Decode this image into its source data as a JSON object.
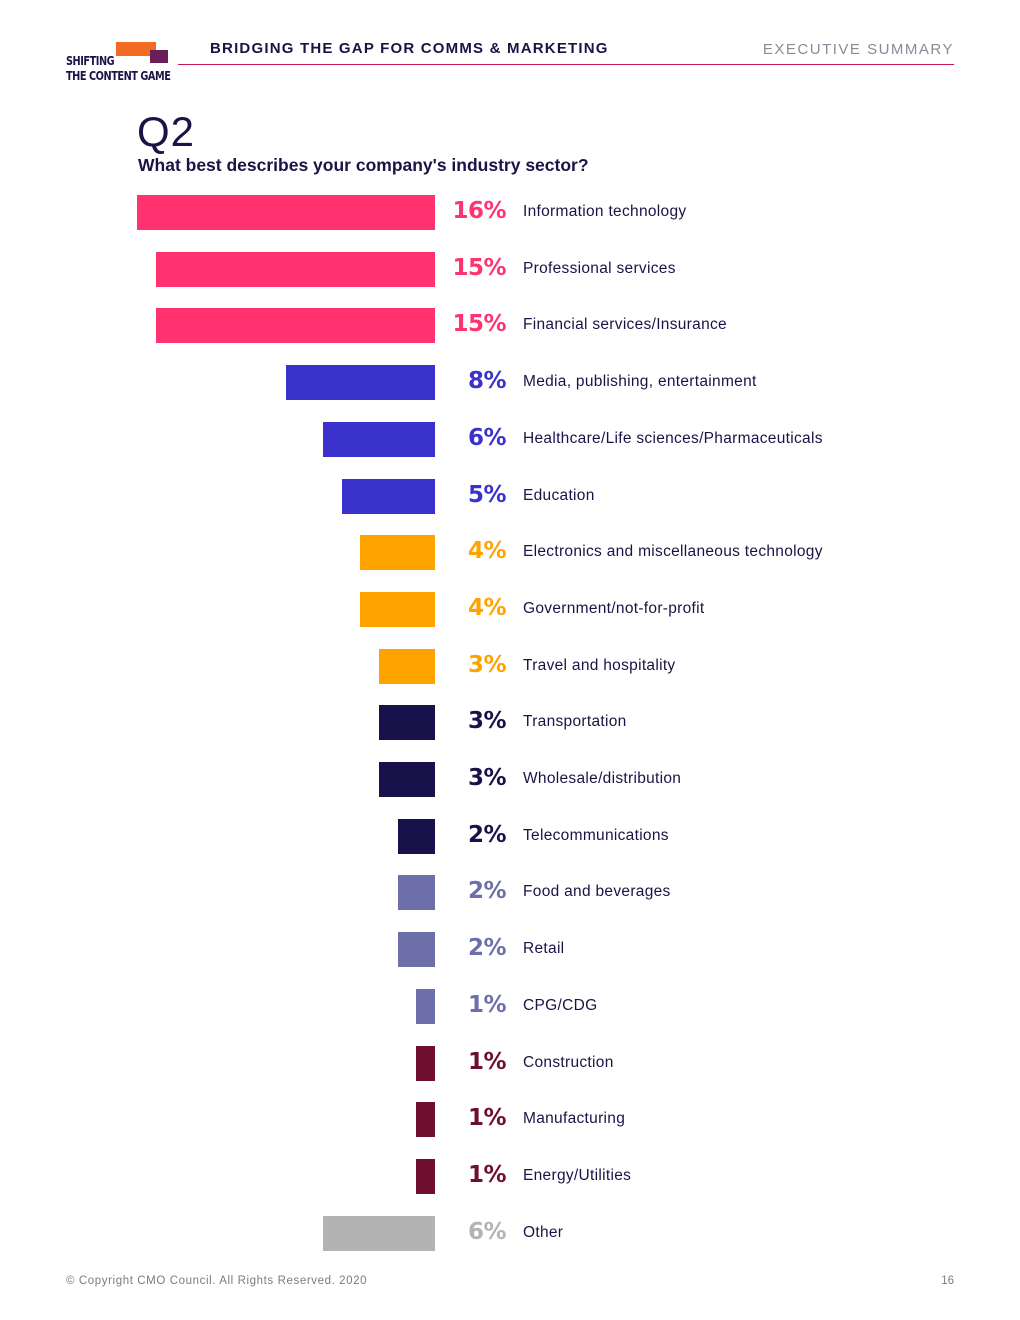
{
  "header": {
    "logo_line1": "SHIFTING",
    "logo_line2": "THE CONTENT GAME",
    "title": "BRIDGING THE GAP FOR COMMS & MARKETING",
    "section": "EXECUTIVE SUMMARY"
  },
  "question": {
    "number": "Q2",
    "text": "What best describes your company's industry sector?"
  },
  "colors": {
    "pink": "#ff3370",
    "blue": "#3b31cc",
    "orange": "#ffa300",
    "navy": "#17124a",
    "slate": "#6c6fa8",
    "maroon": "#6e0f2f",
    "gray": "#b3b3b3"
  },
  "chart_data": {
    "type": "bar",
    "orientation": "horizontal",
    "categories": [
      "Information technology",
      "Professional services",
      "Financial services/Insurance",
      "Media, publishing, entertainment",
      "Healthcare/Life sciences/Pharmaceuticals",
      "Education",
      "Electronics and miscellaneous technology",
      "Government/not-for-profit",
      "Travel and hospitality",
      "Transportation",
      "Wholesale/distribution",
      "Telecommunications",
      "Food and beverages",
      "Retail",
      "CPG/CDG",
      "Construction",
      "Manufacturing",
      "Energy/Utilities",
      "Other"
    ],
    "values": [
      16,
      15,
      15,
      8,
      6,
      5,
      4,
      4,
      3,
      3,
      3,
      2,
      2,
      2,
      1,
      1,
      1,
      1,
      6
    ],
    "labels": [
      "16%",
      "15%",
      "15%",
      "8%",
      "6%",
      "5%",
      "4%",
      "4%",
      "3%",
      "3%",
      "3%",
      "2%",
      "2%",
      "2%",
      "1%",
      "1%",
      "1%",
      "1%",
      "6%"
    ],
    "bar_colors": [
      "pink",
      "pink",
      "pink",
      "blue",
      "blue",
      "blue",
      "orange",
      "orange",
      "orange",
      "navy",
      "navy",
      "navy",
      "slate",
      "slate",
      "slate",
      "maroon",
      "maroon",
      "maroon",
      "gray"
    ],
    "unit": "%",
    "xlim": [
      0,
      16
    ]
  },
  "footer": {
    "copyright": "© Copyright CMO Council. All Rights Reserved. 2020",
    "page": "16"
  }
}
